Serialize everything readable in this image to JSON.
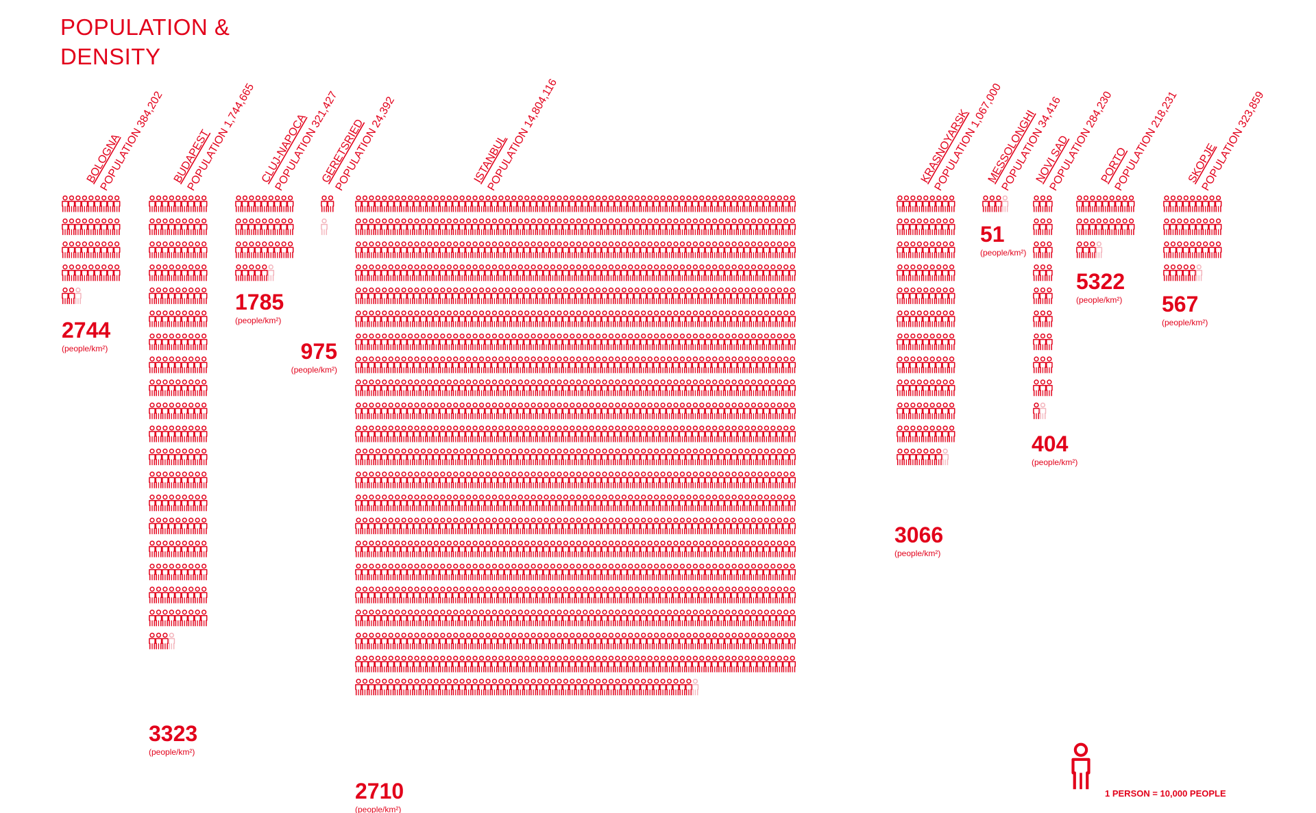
{
  "title_line1": "POPULATION &",
  "title_line2": "DENSITY",
  "legend": {
    "text": "1 PERSON = 10,000 PEOPLE",
    "icon": "person-icon"
  },
  "density_unit": "(people/km²)",
  "colors": {
    "accent": "#e2001a",
    "faded": "#f3b3bb"
  },
  "chart_data": {
    "type": "pictogram",
    "unit_value": 10000,
    "cities": [
      {
        "name": "BOLOGNA",
        "population_label": "POPULATION 384,202",
        "population": 384202,
        "density": "2744",
        "icons": 38.4
      },
      {
        "name": "BUDAPEST",
        "population_label": "POPULATION 1,744,665",
        "population": 1744665,
        "density": "3323",
        "icons": 174.5
      },
      {
        "name": "CLUJ-NAPOCA",
        "population_label": "POPULATION 321,427",
        "population": 321427,
        "density": "1785",
        "icons": 32.1
      },
      {
        "name": "GERETSRIED",
        "population_label": "POPULATION 24,392",
        "population": 24392,
        "density": "975",
        "icons": 2.4
      },
      {
        "name": "ISTANBUL",
        "population_label": "POPULATION 14,804,116",
        "population": 14804116,
        "density": "2710",
        "icons": 1480.4
      },
      {
        "name": "KRASNOYARSK",
        "population_label": "POPULATION 1,067,000",
        "population": 1067000,
        "density": "3066",
        "icons": 106.7
      },
      {
        "name": "MESSOLONGHI",
        "population_label": "POPULATION 34,416",
        "population": 34416,
        "density": "51",
        "icons": 3.4
      },
      {
        "name": "NOVI SAD",
        "population_label": "POPULATION 284,230",
        "population": 284230,
        "density": "404",
        "icons": 28.4
      },
      {
        "name": "PORTO",
        "population_label": "POPULATION 218,231",
        "population": 218231,
        "density": "5322",
        "icons": 21.8
      },
      {
        "name": "SKOPJE",
        "population_label": "POPULATION 323,859",
        "population": 323859,
        "density": "567",
        "icons": 32.4
      }
    ]
  }
}
